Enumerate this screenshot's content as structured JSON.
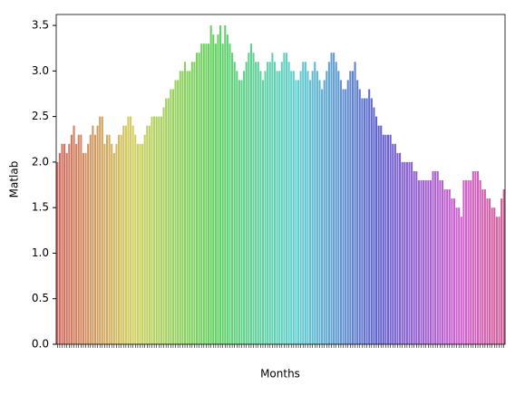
{
  "chart_data": {
    "type": "bar",
    "xlabel": "Months",
    "ylabel": "Matlab",
    "palette": "husl",
    "grid": false,
    "ylim": [
      0,
      3.62
    ],
    "yticks": [
      {
        "value": 0,
        "label": "0.0"
      },
      0.5,
      {
        "value": 1,
        "label": "1.0"
      },
      1.5,
      {
        "value": 2,
        "label": "2.0"
      },
      2.5,
      {
        "value": 3,
        "label": "3.0"
      },
      3.5
    ],
    "categories": [
      null,
      null,
      null,
      null,
      null,
      null,
      null,
      null,
      null,
      null,
      null,
      null,
      null,
      null,
      null,
      null,
      null,
      null,
      null,
      null,
      null,
      null,
      null,
      null,
      null,
      null,
      null,
      null,
      null,
      null,
      null,
      null,
      null,
      null,
      null,
      null,
      null,
      null,
      null,
      null,
      null,
      null,
      null,
      null,
      null,
      null,
      null,
      null,
      null,
      null,
      null,
      null,
      null,
      null,
      null,
      null,
      null,
      null,
      null,
      null,
      null,
      null,
      null,
      null,
      null,
      null,
      null,
      null,
      null,
      null,
      null,
      null,
      null,
      null,
      null,
      null,
      null,
      null,
      null,
      null,
      null,
      null,
      null,
      null,
      null,
      null,
      null,
      null,
      null,
      null,
      null,
      null,
      null,
      null,
      null,
      null,
      null,
      null,
      null,
      null,
      null,
      null,
      null,
      null,
      null,
      null,
      null,
      null,
      null,
      null,
      null,
      null,
      null,
      null,
      null,
      null,
      null,
      null,
      null,
      null,
      null,
      null,
      null,
      null,
      null,
      null,
      null,
      null,
      null,
      null,
      null,
      null,
      null,
      null,
      null,
      null,
      null,
      null,
      null,
      null,
      null,
      null,
      null,
      null,
      null,
      null,
      null,
      null,
      null,
      null,
      null,
      null,
      null,
      null,
      null,
      null,
      null,
      null,
      null,
      null,
      null,
      null,
      null,
      null,
      null,
      null,
      null,
      null,
      null,
      null,
      null,
      null,
      null,
      null,
      null,
      null,
      null,
      null,
      null,
      null,
      null,
      null,
      null,
      null,
      null,
      null,
      null,
      null,
      null,
      null
    ],
    "values": [
      2.0,
      2.1,
      2.2,
      2.2,
      2.1,
      2.2,
      2.3,
      2.4,
      2.2,
      2.3,
      2.3,
      2.1,
      2.1,
      2.2,
      2.3,
      2.4,
      2.3,
      2.4,
      2.5,
      2.5,
      2.2,
      2.3,
      2.3,
      2.2,
      2.1,
      2.2,
      2.3,
      2.3,
      2.4,
      2.4,
      2.5,
      2.5,
      2.4,
      2.3,
      2.2,
      2.2,
      2.2,
      2.3,
      2.4,
      2.4,
      2.5,
      2.5,
      2.5,
      2.5,
      2.5,
      2.6,
      2.7,
      2.7,
      2.8,
      2.8,
      2.9,
      2.9,
      3.0,
      3.0,
      3.1,
      3.0,
      3.0,
      3.1,
      3.1,
      3.2,
      3.2,
      3.3,
      3.3,
      3.3,
      3.3,
      3.5,
      3.4,
      3.3,
      3.4,
      3.5,
      3.3,
      3.5,
      3.4,
      3.3,
      3.2,
      3.1,
      3.0,
      2.9,
      2.9,
      3.0,
      3.1,
      3.2,
      3.3,
      3.2,
      3.1,
      3.1,
      3.0,
      2.9,
      3.0,
      3.1,
      3.1,
      3.2,
      3.1,
      3.0,
      3.0,
      3.1,
      3.2,
      3.2,
      3.1,
      3.0,
      3.0,
      2.9,
      2.9,
      3.0,
      3.1,
      3.1,
      3.0,
      2.9,
      3.0,
      3.1,
      3.0,
      2.9,
      2.8,
      2.9,
      3.0,
      3.1,
      3.2,
      3.2,
      3.1,
      3.0,
      2.9,
      2.8,
      2.8,
      2.9,
      3.0,
      3.0,
      3.1,
      2.9,
      2.8,
      2.7,
      2.7,
      2.7,
      2.8,
      2.7,
      2.6,
      2.5,
      2.4,
      2.4,
      2.3,
      2.3,
      2.3,
      2.3,
      2.2,
      2.2,
      2.1,
      2.1,
      2.0,
      2.0,
      2.0,
      2.0,
      2.0,
      1.9,
      1.9,
      1.8,
      1.8,
      1.8,
      1.8,
      1.8,
      1.8,
      1.9,
      1.9,
      1.9,
      1.8,
      1.8,
      1.7,
      1.7,
      1.7,
      1.6,
      1.6,
      1.5,
      1.5,
      1.4,
      1.8,
      1.8,
      1.8,
      1.8,
      1.9,
      1.9,
      1.9,
      1.8,
      1.7,
      1.7,
      1.6,
      1.6,
      1.5,
      1.5,
      1.4,
      1.4,
      1.6,
      1.7
    ]
  }
}
